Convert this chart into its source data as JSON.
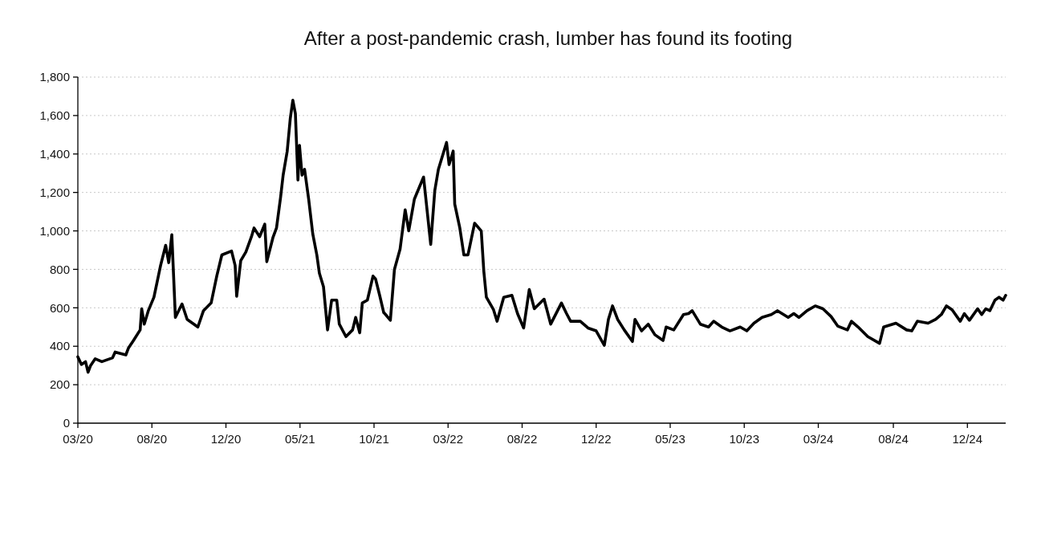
{
  "chart_data": {
    "type": "line",
    "title": "After a post-pandemic crash, lumber has found its footing",
    "xlim": [
      "2020-03-16",
      "2025-03-07"
    ],
    "xticks": [
      {
        "value": "2020-03-16",
        "label": "03/20"
      },
      {
        "value": "2020-08-08",
        "label": "08/20"
      },
      {
        "value": "2020-12-31",
        "label": "12/20"
      },
      {
        "value": "2021-05-25",
        "label": "05/21"
      },
      {
        "value": "2021-10-17",
        "label": "10/21"
      },
      {
        "value": "2022-03-11",
        "label": "03/22"
      },
      {
        "value": "2022-08-03",
        "label": "08/22"
      },
      {
        "value": "2022-12-26",
        "label": "12/22"
      },
      {
        "value": "2023-05-20",
        "label": "05/23"
      },
      {
        "value": "2023-10-12",
        "label": "10/23"
      },
      {
        "value": "2024-03-05",
        "label": "03/24"
      },
      {
        "value": "2024-07-30",
        "label": "08/24"
      },
      {
        "value": "2024-12-22",
        "label": "12/24"
      }
    ],
    "ylim": [
      0,
      1800
    ],
    "yticks": [
      0,
      200,
      400,
      600,
      800,
      {
        "value": 1000,
        "label": "1,000"
      },
      {
        "value": 1200,
        "label": "1,200"
      },
      {
        "value": 1400,
        "label": "1,400"
      },
      {
        "value": 1600,
        "label": "1,600"
      },
      {
        "value": 1800,
        "label": "1,800"
      }
    ],
    "grid": "y",
    "line_style": "solid",
    "series": [
      {
        "color": "#000000",
        "x": [
          "2020-03-16",
          "2020-03-23",
          "2020-03-31",
          "2020-04-05",
          "2020-04-10",
          "2020-04-19",
          "2020-05-02",
          "2020-05-23",
          "2020-05-28",
          "2020-06-18",
          "2020-06-23",
          "2020-07-03",
          "2020-07-16",
          "2020-07-19",
          "2020-07-24",
          "2020-08-01",
          "2020-08-12",
          "2020-08-25",
          "2020-09-04",
          "2020-09-10",
          "2020-09-16",
          "2020-09-23",
          "2020-10-06",
          "2020-10-16",
          "2020-11-06",
          "2020-11-17",
          "2020-12-02",
          "2020-12-13",
          "2020-12-23",
          "2021-01-11",
          "2021-01-18",
          "2021-01-21",
          "2021-01-29",
          "2021-02-08",
          "2021-02-19",
          "2021-02-24",
          "2021-03-07",
          "2021-03-17",
          "2021-03-21",
          "2021-04-02",
          "2021-04-09",
          "2021-04-17",
          "2021-04-22",
          "2021-04-30",
          "2021-05-06",
          "2021-05-11",
          "2021-05-16",
          "2021-05-21",
          "2021-05-24",
          "2021-05-29",
          "2021-06-03",
          "2021-06-11",
          "2021-06-19",
          "2021-06-27",
          "2021-07-02",
          "2021-07-10",
          "2021-07-18",
          "2021-07-26",
          "2021-08-05",
          "2021-08-10",
          "2021-08-23",
          "2021-09-05",
          "2021-09-11",
          "2021-09-19",
          "2021-09-24",
          "2021-10-04",
          "2021-10-15",
          "2021-10-20",
          "2021-10-28",
          "2021-11-05",
          "2021-11-07",
          "2021-11-18",
          "2021-11-26",
          "2021-12-07",
          "2021-12-17",
          "2021-12-24",
          "2022-01-04",
          "2022-01-22",
          "2022-02-05",
          "2022-02-13",
          "2022-02-20",
          "2022-03-08",
          "2022-03-13",
          "2022-03-21",
          "2022-03-24",
          "2022-04-03",
          "2022-04-11",
          "2022-04-19",
          "2022-05-02",
          "2022-05-15",
          "2022-05-20",
          "2022-05-25",
          "2022-06-08",
          "2022-06-15",
          "2022-06-28",
          "2022-07-14",
          "2022-07-25",
          "2022-08-06",
          "2022-08-17",
          "2022-08-27",
          "2022-09-15",
          "2022-09-28",
          "2022-10-19",
          "2022-10-29",
          "2022-11-06",
          "2022-11-25",
          "2022-12-10",
          "2022-12-26",
          "2023-01-11",
          "2023-01-19",
          "2023-01-27",
          "2023-02-06",
          "2023-02-19",
          "2023-03-07",
          "2023-03-12",
          "2023-03-25",
          "2023-04-07",
          "2023-04-20",
          "2023-05-06",
          "2023-05-12",
          "2023-05-27",
          "2023-06-15",
          "2023-06-25",
          "2023-07-02",
          "2023-07-18",
          "2023-08-03",
          "2023-08-13",
          "2023-08-29",
          "2023-09-14",
          "2023-10-04",
          "2023-10-17",
          "2023-10-31",
          "2023-11-16",
          "2023-12-04",
          "2023-12-16",
          "2024-01-06",
          "2024-01-17",
          "2024-01-27",
          "2024-02-12",
          "2024-02-28",
          "2024-03-14",
          "2024-03-30",
          "2024-04-12",
          "2024-05-01",
          "2024-05-09",
          "2024-05-22",
          "2024-06-10",
          "2024-07-03",
          "2024-07-11",
          "2024-08-04",
          "2024-08-25",
          "2024-09-04",
          "2024-09-15",
          "2024-10-06",
          "2024-10-21",
          "2024-11-01",
          "2024-11-11",
          "2024-11-22",
          "2024-12-08",
          "2024-12-16",
          "2024-12-26",
          "2025-01-11",
          "2025-01-19",
          "2025-01-27",
          "2025-02-04",
          "2025-02-14",
          "2025-02-22",
          "2025-03-02",
          "2025-03-07"
        ],
        "values": [
          345,
          305,
          320,
          265,
          300,
          335,
          320,
          340,
          370,
          355,
          390,
          430,
          485,
          595,
          515,
          585,
          655,
          820,
          925,
          835,
          980,
          550,
          620,
          540,
          500,
          585,
          625,
          765,
          875,
          895,
          820,
          660,
          845,
          890,
          970,
          1015,
          970,
          1035,
          840,
          965,
          1015,
          1175,
          1290,
          1415,
          1585,
          1680,
          1610,
          1265,
          1445,
          1290,
          1320,
          1165,
          985,
          875,
          780,
          710,
          485,
          640,
          640,
          515,
          450,
          485,
          550,
          470,
          625,
          640,
          765,
          750,
          665,
          575,
          570,
          535,
          800,
          905,
          1110,
          1000,
          1165,
          1280,
          930,
          1210,
          1320,
          1460,
          1345,
          1415,
          1140,
          1015,
          875,
          875,
          1040,
          1000,
          790,
          655,
          590,
          530,
          655,
          665,
          570,
          495,
          695,
          595,
          645,
          515,
          625,
          570,
          530,
          530,
          495,
          480,
          405,
          540,
          610,
          540,
          485,
          425,
          540,
          480,
          515,
          460,
          430,
          500,
          485,
          565,
          570,
          585,
          515,
          500,
          530,
          500,
          480,
          500,
          480,
          520,
          550,
          565,
          585,
          550,
          570,
          550,
          585,
          610,
          595,
          555,
          505,
          485,
          530,
          500,
          450,
          415,
          500,
          520,
          485,
          480,
          530,
          520,
          540,
          565,
          610,
          590,
          530,
          570,
          535,
          595,
          565,
          595,
          585,
          640,
          655,
          640,
          665
        ]
      }
    ]
  }
}
